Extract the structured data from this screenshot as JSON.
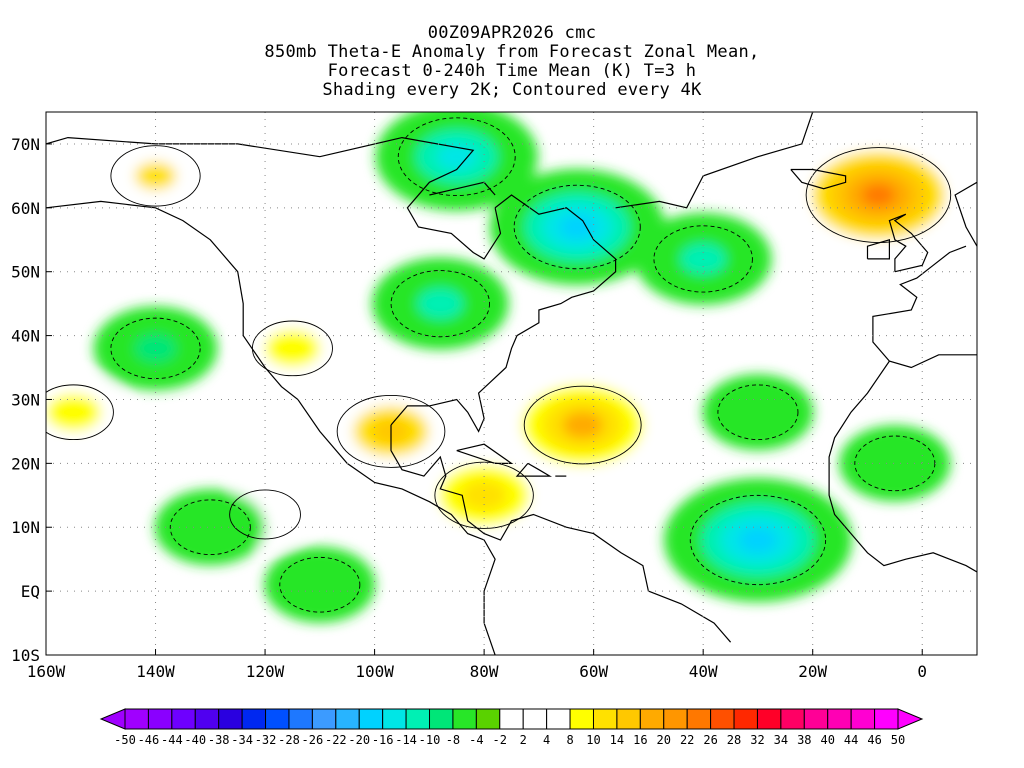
{
  "header": {
    "lines": [
      "00Z09APR2026 cmc",
      "850mb Theta-E Anomaly from Forecast Zonal Mean,",
      "Forecast 0-240h Time Mean (K) T=3 h",
      "Shading every 2K; Contoured every 4K"
    ]
  },
  "map": {
    "lon_range": [
      -160,
      10
    ],
    "lat_range": [
      -10,
      75
    ],
    "lon_ticks": [
      {
        "lon": -160,
        "label": "160W"
      },
      {
        "lon": -140,
        "label": "140W"
      },
      {
        "lon": -120,
        "label": "120W"
      },
      {
        "lon": -100,
        "label": "100W"
      },
      {
        "lon": -80,
        "label": "80W"
      },
      {
        "lon": -60,
        "label": "60W"
      },
      {
        "lon": -40,
        "label": "40W"
      },
      {
        "lon": -20,
        "label": "20W"
      },
      {
        "lon": 0,
        "label": "0"
      }
    ],
    "lat_ticks": [
      {
        "lat": -10,
        "label": "10S"
      },
      {
        "lat": 0,
        "label": "EQ"
      },
      {
        "lat": 10,
        "label": "10N"
      },
      {
        "lat": 20,
        "label": "20N"
      },
      {
        "lat": 30,
        "label": "30N"
      },
      {
        "lat": 40,
        "label": "40N"
      },
      {
        "lat": 50,
        "label": "50N"
      },
      {
        "lat": 60,
        "label": "60N"
      },
      {
        "lat": 70,
        "label": "70N"
      }
    ],
    "gridlines": "dotted",
    "anomaly_features": [
      {
        "name": "warm",
        "lon": -62,
        "lat": 26,
        "value": 16
      },
      {
        "name": "warm",
        "lon": -97,
        "lat": 25,
        "value": 14
      },
      {
        "name": "warm",
        "lon": -80,
        "lat": 15,
        "value": 12
      },
      {
        "name": "warm",
        "lon": -8,
        "lat": 62,
        "value": 22
      },
      {
        "name": "warm",
        "lon": -140,
        "lat": 65,
        "value": 10
      },
      {
        "name": "warm",
        "lon": -115,
        "lat": 38,
        "value": 8
      },
      {
        "name": "warm",
        "lon": -120,
        "lat": 12,
        "value": 6
      },
      {
        "name": "warm",
        "lon": -155,
        "lat": 28,
        "value": 8
      },
      {
        "name": "cold",
        "lon": -63,
        "lat": 57,
        "value": -18
      },
      {
        "name": "cold",
        "lon": -85,
        "lat": 68,
        "value": -16
      },
      {
        "name": "cold",
        "lon": -30,
        "lat": 8,
        "value": -20
      },
      {
        "name": "cold",
        "lon": -40,
        "lat": 52,
        "value": -12
      },
      {
        "name": "cold",
        "lon": -140,
        "lat": 38,
        "value": -10
      },
      {
        "name": "cold",
        "lon": -88,
        "lat": 45,
        "value": -12
      },
      {
        "name": "cold",
        "lon": -30,
        "lat": 28,
        "value": -8
      },
      {
        "name": "cold",
        "lon": -130,
        "lat": 10,
        "value": -8
      },
      {
        "name": "cold",
        "lon": -110,
        "lat": 1,
        "value": -8
      },
      {
        "name": "cold",
        "lon": -5,
        "lat": 20,
        "value": -8
      }
    ]
  },
  "colorbar": {
    "labels": [
      "-50",
      "-46",
      "-44",
      "-40",
      "-38",
      "-34",
      "-32",
      "-28",
      "-26",
      "-22",
      "-20",
      "-16",
      "-14",
      "-10",
      "-8",
      "-4",
      "-2",
      "2",
      "4",
      "8",
      "10",
      "14",
      "16",
      "20",
      "22",
      "26",
      "28",
      "32",
      "34",
      "38",
      "40",
      "44",
      "46",
      "50"
    ],
    "colors": [
      "#a000ff",
      "#8a00ff",
      "#6e00ff",
      "#5000f0",
      "#2a00e0",
      "#0028f0",
      "#0050ff",
      "#1e78ff",
      "#3c9bff",
      "#28b4ff",
      "#00d2ff",
      "#00e6e6",
      "#00f0b4",
      "#00e678",
      "#28e628",
      "#5ad200",
      "#ffffff",
      "#ffffff",
      "#ffffff",
      "#ffff00",
      "#ffe100",
      "#ffc800",
      "#ffaa00",
      "#ff9600",
      "#ff7800",
      "#ff5000",
      "#ff2800",
      "#ff0028",
      "#ff0064",
      "#ff0096",
      "#ff00b4",
      "#ff00d2",
      "#ff00ff"
    ],
    "left_arrow_color": "#a000ff",
    "right_arrow_color": "#ff00ff"
  }
}
